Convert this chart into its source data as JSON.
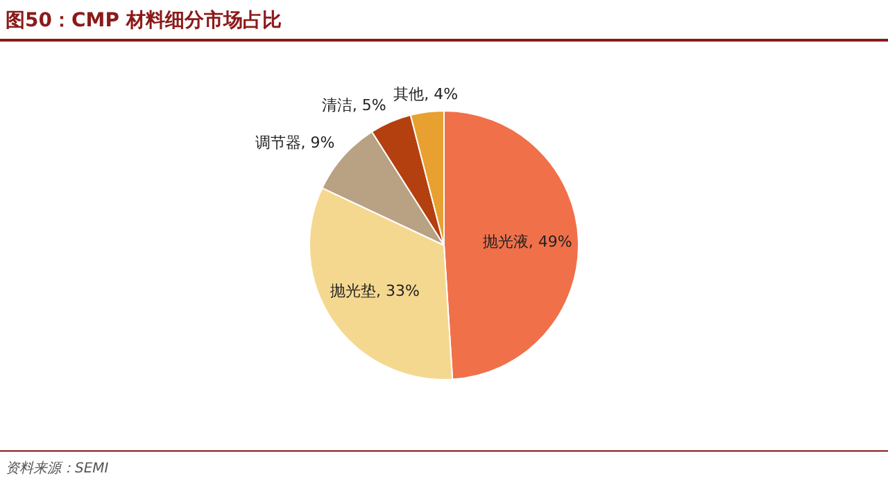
{
  "chart_data": {
    "type": "pie",
    "title": "图50：CMP 材料细分市场占比",
    "categories": [
      "抛光液",
      "抛光垫",
      "调节器",
      "清洁",
      "其他"
    ],
    "values": [
      49,
      33,
      9,
      5,
      4
    ],
    "colors": [
      "#f0704a",
      "#f5d890",
      "#b9a183",
      "#b5400f",
      "#e8a030"
    ],
    "value_labels": [
      ", 49%",
      ", 33%",
      ", 9%",
      ", 5%",
      ", 4%"
    ],
    "legend": false,
    "annotations": [
      "资料来源：SEMI"
    ]
  }
}
